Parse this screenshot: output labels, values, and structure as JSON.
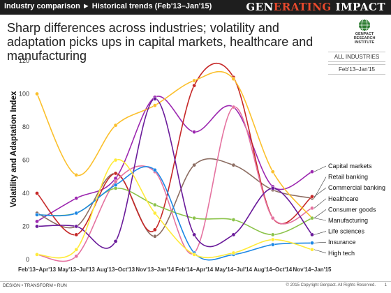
{
  "header": {
    "breadcrumb": "Industry comparison ► Historical trends (Feb'13–Jan'15)",
    "brand_part1": "GEN",
    "brand_part2": "ERATING",
    "brand_part3": " IMPACT"
  },
  "headline": "Sharp differences across industries; volatility and adaptation picks ups in capital markets, healthcare and manufacturing",
  "logo": {
    "line1": "GENPACT",
    "line2": "RESEARCH",
    "line3": "INSTITUTE"
  },
  "filters": {
    "industry": "ALL INDUSTRIES",
    "period": "Feb'13–Jan'15"
  },
  "footer": {
    "left": "DESIGN • TRANSFORM • RUN",
    "right": "© 2015 Copyright Genpact. All Rights Reserved.",
    "page": "1"
  },
  "chart_data": {
    "type": "line",
    "ylabel": "Volatility and Adaptation Index",
    "ylim": [
      0,
      120
    ],
    "yticks": [
      0,
      20,
      40,
      60,
      80,
      100,
      120
    ],
    "grid": false,
    "legend_position": "right",
    "categories": [
      "Feb'13–Apr'13",
      "May'13–Jul'13",
      "Aug'13–Oct'13",
      "Nov'13–Jan'14",
      "Feb'14–Apr'14",
      "May'14–Jul'14",
      "Aug'14–Oct'14",
      "Nov'14–Jan'15"
    ],
    "series": [
      {
        "name": "Capital markets",
        "color": "#9c27b0",
        "values": [
          23,
          37,
          49,
          98,
          77,
          92,
          44,
          53
        ]
      },
      {
        "name": "Retail banking",
        "color": "#8d6e63",
        "values": [
          28,
          20,
          52,
          14,
          57,
          57,
          42,
          37
        ]
      },
      {
        "name": "Commercial banking",
        "color": "#c62828",
        "values": [
          40,
          15,
          52,
          18,
          105,
          110,
          25,
          38
        ]
      },
      {
        "name": "Healthcare",
        "color": "#e573a0",
        "values": [
          3,
          2,
          47,
          53,
          4,
          92,
          25,
          31
        ]
      },
      {
        "name": "Consumer goods",
        "color": "#fbc02d",
        "values": [
          100,
          51,
          81,
          93,
          108,
          109,
          53,
          25
        ]
      },
      {
        "name": "Manufacturing",
        "color": "#8bc34a",
        "values": [
          27,
          28,
          43,
          33,
          25,
          24,
          15,
          25
        ]
      },
      {
        "name": "Life sciences",
        "color": "#6a1b9a",
        "values": [
          20,
          20,
          11,
          97,
          15,
          15,
          43,
          15
        ]
      },
      {
        "name": "Insurance",
        "color": "#1e88e5",
        "values": [
          27,
          28,
          45,
          54,
          4,
          3,
          9,
          10
        ]
      },
      {
        "name": "High tech",
        "color": "#ffeb3b",
        "values": [
          3,
          6,
          60,
          28,
          3,
          4,
          12,
          6
        ]
      }
    ]
  }
}
